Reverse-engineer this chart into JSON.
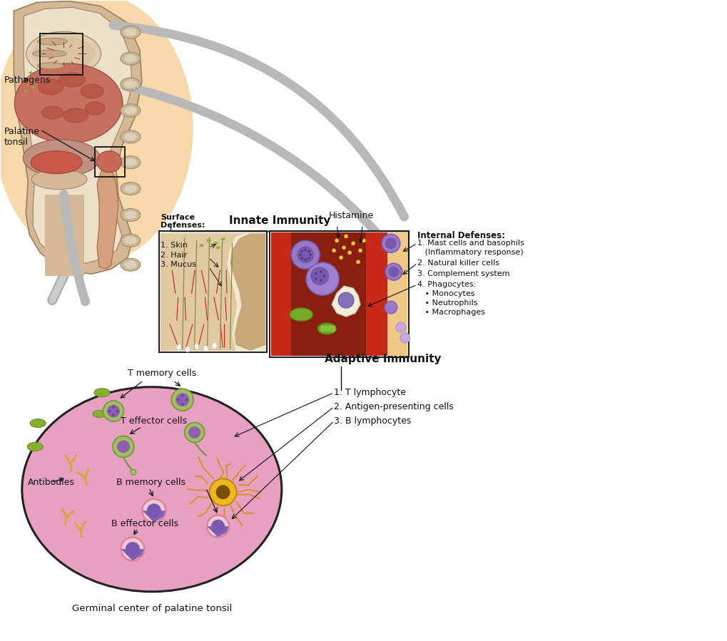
{
  "bg_color": "#ffffff",
  "innate_immunity_label": "Innate Immunity",
  "adaptive_immunity_label": "Adaptive Immunity",
  "pathogens_label": "Pathogens",
  "palatine_tonsil_label": "Palatine\ntonsil",
  "germinal_center_label": "Germinal center of palatine tonsil",
  "histamine_label": "Histamine",
  "surface_defenses_title": "Surface\nDefenses:",
  "surface_defenses_items": [
    "1. Skin",
    "2. Hair",
    "3. Mucus"
  ],
  "internal_defenses_title": "Internal Defenses:",
  "internal_defenses_items": [
    "1. Mast cells and basophils",
    "   (Inflammatory response)",
    "2. Natural killer cells",
    "3. Complement system",
    "4. Phagocytes:",
    "   • Monocytes",
    "   • Neutrophils",
    "   • Macrophages"
  ],
  "adaptive_items": [
    "1. T lymphocyte",
    "2. Antigen-presenting cells",
    "3. B lymphocytes"
  ],
  "t_memory_label": "T memory cells",
  "t_effector_label": "T effector cells",
  "b_memory_label": "B memory cells",
  "b_effector_label": "B effector cells",
  "antibodies_label": "Antibodies",
  "oval_color": "#e8a0c0",
  "oval_edge_color": "#222222",
  "box_edge_color": "#222222"
}
